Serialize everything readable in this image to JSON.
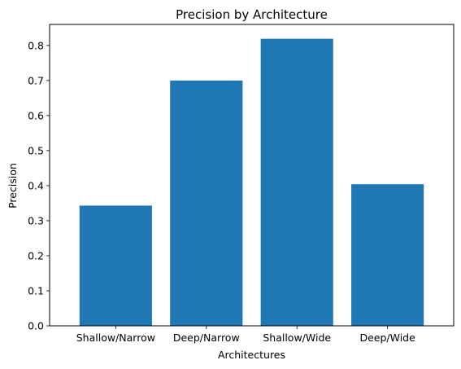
{
  "chart_data": {
    "type": "bar",
    "title": "Precision by Architecture",
    "xlabel": "Architectures",
    "ylabel": "Precision",
    "categories": [
      "Shallow/Narrow",
      "Deep/Narrow",
      "Shallow/Wide",
      "Deep/Wide"
    ],
    "values": [
      0.343,
      0.7,
      0.819,
      0.404
    ],
    "ylim": [
      0,
      0.86
    ],
    "yticks": [
      "0.0",
      "0.1",
      "0.2",
      "0.3",
      "0.4",
      "0.5",
      "0.6",
      "0.7",
      "0.8"
    ],
    "bar_color": "#1f77b4",
    "grid": false,
    "legend": "none"
  }
}
